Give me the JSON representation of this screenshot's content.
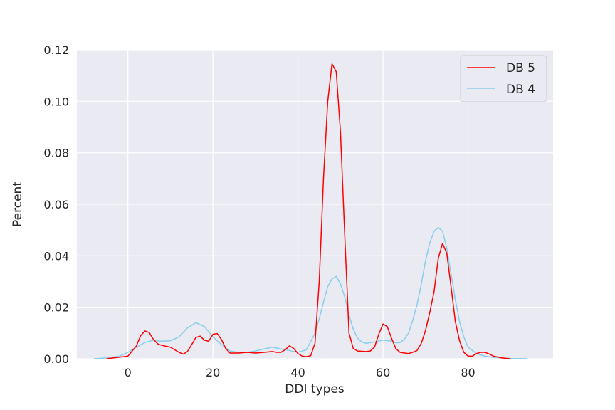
{
  "chart_data": {
    "type": "line",
    "title": "",
    "xlabel": "DDI types",
    "ylabel": "Percent",
    "xlim": [
      -12,
      100
    ],
    "ylim": [
      0,
      0.12
    ],
    "xticks": [
      0,
      20,
      40,
      60,
      80
    ],
    "yticks": [
      0.0,
      0.02,
      0.04,
      0.06,
      0.08,
      0.1,
      0.12
    ],
    "xtick_labels": [
      "0",
      "20",
      "40",
      "60",
      "80"
    ],
    "ytick_labels": [
      "0.00",
      "0.02",
      "0.04",
      "0.06",
      "0.08",
      "0.10",
      "0.12"
    ],
    "grid": true,
    "legend_position": "top-right",
    "background": "#eaeaf2",
    "series": [
      {
        "name": "DB 5",
        "color": "#ff0000",
        "x": [
          -5,
          0,
          2,
          3,
          4,
          5,
          6,
          7,
          8,
          10,
          12,
          13,
          14,
          15,
          16,
          17,
          18,
          19,
          20,
          21,
          22,
          23,
          24,
          26,
          28,
          30,
          32,
          34,
          35,
          36,
          37,
          38,
          39,
          40,
          41,
          42,
          43,
          44,
          45,
          46,
          47,
          48,
          49,
          50,
          51,
          52,
          53,
          54,
          56,
          57,
          58,
          59,
          60,
          61,
          62,
          63,
          64,
          66,
          67,
          68,
          69,
          70,
          71,
          72,
          73,
          74,
          75,
          76,
          77,
          78,
          79,
          80,
          81,
          82,
          83,
          84,
          85,
          86,
          88,
          90
        ],
        "values": [
          0.0,
          0.001,
          0.005,
          0.009,
          0.0108,
          0.0102,
          0.0075,
          0.0058,
          0.0052,
          0.0045,
          0.0025,
          0.0018,
          0.0028,
          0.0055,
          0.0083,
          0.0088,
          0.0072,
          0.0068,
          0.0095,
          0.0098,
          0.0075,
          0.004,
          0.0022,
          0.0022,
          0.0025,
          0.0022,
          0.0025,
          0.0028,
          0.0025,
          0.0025,
          0.0035,
          0.005,
          0.004,
          0.002,
          0.001,
          0.0008,
          0.0012,
          0.006,
          0.03,
          0.07,
          0.1,
          0.1145,
          0.1115,
          0.088,
          0.048,
          0.01,
          0.004,
          0.003,
          0.0028,
          0.003,
          0.0045,
          0.0095,
          0.0135,
          0.0125,
          0.008,
          0.004,
          0.0025,
          0.002,
          0.0025,
          0.0032,
          0.006,
          0.011,
          0.018,
          0.026,
          0.039,
          0.0448,
          0.041,
          0.028,
          0.0145,
          0.007,
          0.0025,
          0.001,
          0.001,
          0.002,
          0.0025,
          0.0025,
          0.0018,
          0.001,
          0.0003,
          0.0
        ]
      },
      {
        "name": "DB 4",
        "color": "#87ceeb",
        "x": [
          -8,
          -5,
          -2,
          0,
          2,
          4,
          6,
          8,
          10,
          12,
          14,
          16,
          17,
          18,
          20,
          22,
          24,
          26,
          28,
          30,
          32,
          34,
          36,
          38,
          40,
          42,
          44,
          45,
          46,
          47,
          48,
          49,
          50,
          51,
          52,
          53,
          54,
          55,
          56,
          58,
          60,
          62,
          63,
          64,
          65,
          66,
          67,
          68,
          69,
          70,
          71,
          72,
          73,
          74,
          75,
          76,
          77,
          78,
          79,
          80,
          82,
          84,
          86,
          88,
          90,
          94
        ],
        "values": [
          0.0,
          0.0003,
          0.001,
          0.0025,
          0.0045,
          0.0063,
          0.0072,
          0.0068,
          0.007,
          0.0085,
          0.012,
          0.014,
          0.0133,
          0.0125,
          0.0085,
          0.0055,
          0.003,
          0.0025,
          0.0025,
          0.003,
          0.0038,
          0.0045,
          0.0038,
          0.0032,
          0.0025,
          0.0035,
          0.01,
          0.0155,
          0.022,
          0.028,
          0.031,
          0.032,
          0.029,
          0.024,
          0.017,
          0.0115,
          0.008,
          0.0065,
          0.006,
          0.0065,
          0.0073,
          0.0068,
          0.0062,
          0.0063,
          0.0075,
          0.01,
          0.015,
          0.021,
          0.029,
          0.038,
          0.045,
          0.0495,
          0.051,
          0.0495,
          0.043,
          0.033,
          0.023,
          0.0145,
          0.0085,
          0.0045,
          0.002,
          0.001,
          0.0005,
          0.0003,
          0.0001,
          0.0
        ]
      }
    ]
  }
}
